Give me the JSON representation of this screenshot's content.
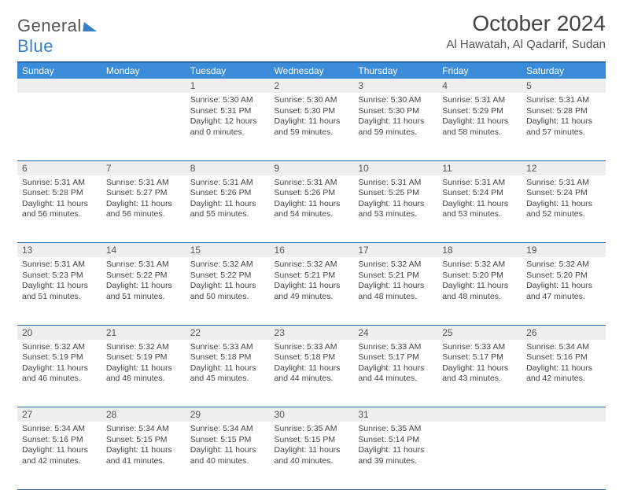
{
  "logo": {
    "word1": "General",
    "word2": "Blue"
  },
  "title": "October 2024",
  "location": "Al Hawatah, Al Qadarif, Sudan",
  "colors": {
    "header_bg": "#3a8bd8",
    "header_border": "#2f6ca8",
    "daynum_bg": "#eeeeee",
    "text": "#444444",
    "logo_blue": "#3a7fc4"
  },
  "dayHeaders": [
    "Sunday",
    "Monday",
    "Tuesday",
    "Wednesday",
    "Thursday",
    "Friday",
    "Saturday"
  ],
  "weeks": [
    [
      null,
      null,
      {
        "n": "1",
        "sr": "5:30 AM",
        "ss": "5:31 PM",
        "dl": "12 hours and 0 minutes."
      },
      {
        "n": "2",
        "sr": "5:30 AM",
        "ss": "5:30 PM",
        "dl": "11 hours and 59 minutes."
      },
      {
        "n": "3",
        "sr": "5:30 AM",
        "ss": "5:30 PM",
        "dl": "11 hours and 59 minutes."
      },
      {
        "n": "4",
        "sr": "5:31 AM",
        "ss": "5:29 PM",
        "dl": "11 hours and 58 minutes."
      },
      {
        "n": "5",
        "sr": "5:31 AM",
        "ss": "5:28 PM",
        "dl": "11 hours and 57 minutes."
      }
    ],
    [
      {
        "n": "6",
        "sr": "5:31 AM",
        "ss": "5:28 PM",
        "dl": "11 hours and 56 minutes."
      },
      {
        "n": "7",
        "sr": "5:31 AM",
        "ss": "5:27 PM",
        "dl": "11 hours and 56 minutes."
      },
      {
        "n": "8",
        "sr": "5:31 AM",
        "ss": "5:26 PM",
        "dl": "11 hours and 55 minutes."
      },
      {
        "n": "9",
        "sr": "5:31 AM",
        "ss": "5:26 PM",
        "dl": "11 hours and 54 minutes."
      },
      {
        "n": "10",
        "sr": "5:31 AM",
        "ss": "5:25 PM",
        "dl": "11 hours and 53 minutes."
      },
      {
        "n": "11",
        "sr": "5:31 AM",
        "ss": "5:24 PM",
        "dl": "11 hours and 53 minutes."
      },
      {
        "n": "12",
        "sr": "5:31 AM",
        "ss": "5:24 PM",
        "dl": "11 hours and 52 minutes."
      }
    ],
    [
      {
        "n": "13",
        "sr": "5:31 AM",
        "ss": "5:23 PM",
        "dl": "11 hours and 51 minutes."
      },
      {
        "n": "14",
        "sr": "5:31 AM",
        "ss": "5:22 PM",
        "dl": "11 hours and 51 minutes."
      },
      {
        "n": "15",
        "sr": "5:32 AM",
        "ss": "5:22 PM",
        "dl": "11 hours and 50 minutes."
      },
      {
        "n": "16",
        "sr": "5:32 AM",
        "ss": "5:21 PM",
        "dl": "11 hours and 49 minutes."
      },
      {
        "n": "17",
        "sr": "5:32 AM",
        "ss": "5:21 PM",
        "dl": "11 hours and 48 minutes."
      },
      {
        "n": "18",
        "sr": "5:32 AM",
        "ss": "5:20 PM",
        "dl": "11 hours and 48 minutes."
      },
      {
        "n": "19",
        "sr": "5:32 AM",
        "ss": "5:20 PM",
        "dl": "11 hours and 47 minutes."
      }
    ],
    [
      {
        "n": "20",
        "sr": "5:32 AM",
        "ss": "5:19 PM",
        "dl": "11 hours and 46 minutes."
      },
      {
        "n": "21",
        "sr": "5:32 AM",
        "ss": "5:19 PM",
        "dl": "11 hours and 46 minutes."
      },
      {
        "n": "22",
        "sr": "5:33 AM",
        "ss": "5:18 PM",
        "dl": "11 hours and 45 minutes."
      },
      {
        "n": "23",
        "sr": "5:33 AM",
        "ss": "5:18 PM",
        "dl": "11 hours and 44 minutes."
      },
      {
        "n": "24",
        "sr": "5:33 AM",
        "ss": "5:17 PM",
        "dl": "11 hours and 44 minutes."
      },
      {
        "n": "25",
        "sr": "5:33 AM",
        "ss": "5:17 PM",
        "dl": "11 hours and 43 minutes."
      },
      {
        "n": "26",
        "sr": "5:34 AM",
        "ss": "5:16 PM",
        "dl": "11 hours and 42 minutes."
      }
    ],
    [
      {
        "n": "27",
        "sr": "5:34 AM",
        "ss": "5:16 PM",
        "dl": "11 hours and 42 minutes."
      },
      {
        "n": "28",
        "sr": "5:34 AM",
        "ss": "5:15 PM",
        "dl": "11 hours and 41 minutes."
      },
      {
        "n": "29",
        "sr": "5:34 AM",
        "ss": "5:15 PM",
        "dl": "11 hours and 40 minutes."
      },
      {
        "n": "30",
        "sr": "5:35 AM",
        "ss": "5:15 PM",
        "dl": "11 hours and 40 minutes."
      },
      {
        "n": "31",
        "sr": "5:35 AM",
        "ss": "5:14 PM",
        "dl": "11 hours and 39 minutes."
      },
      null,
      null
    ]
  ],
  "labels": {
    "sunrise": "Sunrise:",
    "sunset": "Sunset:",
    "daylight": "Daylight:"
  }
}
